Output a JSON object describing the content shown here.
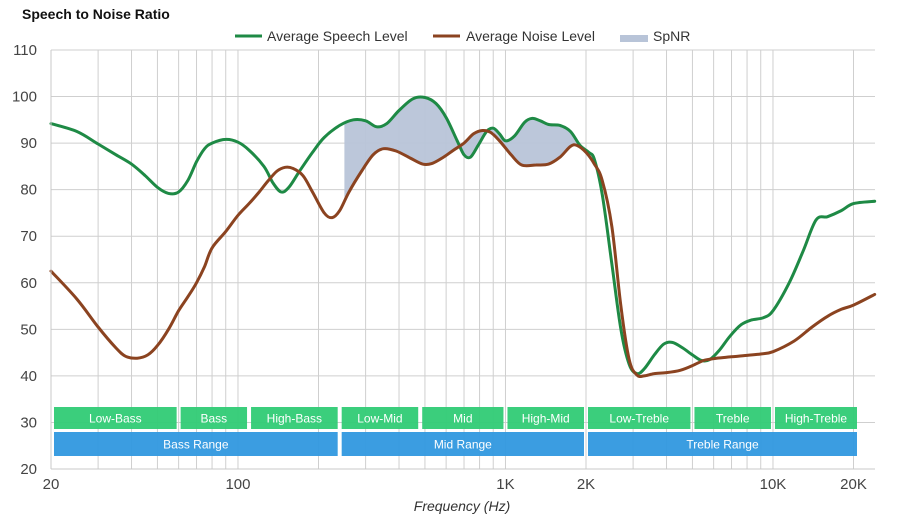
{
  "chart_data": {
    "type": "line",
    "title": "Speech to Noise Ratio",
    "xlabel": "Frequency (Hz)",
    "ylabel": "",
    "xscale": "log",
    "xlim": [
      20,
      24000
    ],
    "ylim": [
      20,
      110
    ],
    "grid": true,
    "legend_position": "top-center",
    "yticks": [
      20,
      30,
      40,
      50,
      60,
      70,
      80,
      90,
      100,
      110
    ],
    "xticks": [
      {
        "value": 20,
        "label": "20"
      },
      {
        "value": 100,
        "label": "100"
      },
      {
        "value": 1000,
        "label": "1K"
      },
      {
        "value": 2000,
        "label": "2K"
      },
      {
        "value": 10000,
        "label": "10K"
      },
      {
        "value": 20000,
        "label": "20K"
      }
    ],
    "minor_grid_x": [
      30,
      40,
      50,
      60,
      70,
      80,
      90,
      200,
      300,
      400,
      500,
      600,
      700,
      800,
      900,
      3000,
      4000,
      5000,
      6000,
      7000,
      8000,
      9000
    ],
    "legend": [
      {
        "name": "Average Speech Level",
        "color": "#1e8a45",
        "kind": "line"
      },
      {
        "name": "Average Noise Level",
        "color": "#8b4320",
        "kind": "line"
      },
      {
        "name": "SpNR",
        "color": "#b8c4d8",
        "kind": "area"
      }
    ],
    "series": [
      {
        "name": "Average Speech Level",
        "color": "#1e8a45",
        "points": [
          [
            20,
            94.2
          ],
          [
            25,
            92.5
          ],
          [
            30,
            89.8
          ],
          [
            35,
            87.5
          ],
          [
            40,
            85.5
          ],
          [
            45,
            83
          ],
          [
            50,
            80.5
          ],
          [
            55,
            79.2
          ],
          [
            60,
            79.5
          ],
          [
            65,
            82
          ],
          [
            70,
            86
          ],
          [
            75,
            88.8
          ],
          [
            80,
            90
          ],
          [
            90,
            90.8
          ],
          [
            100,
            90.2
          ],
          [
            110,
            88.5
          ],
          [
            125,
            85
          ],
          [
            135,
            81.5
          ],
          [
            145,
            79.5
          ],
          [
            155,
            80.5
          ],
          [
            170,
            84
          ],
          [
            190,
            88
          ],
          [
            210,
            91.2
          ],
          [
            240,
            93.8
          ],
          [
            270,
            95
          ],
          [
            300,
            94.8
          ],
          [
            330,
            93.5
          ],
          [
            360,
            94.2
          ],
          [
            400,
            97
          ],
          [
            450,
            99.5
          ],
          [
            500,
            99.8
          ],
          [
            550,
            98.5
          ],
          [
            600,
            95.5
          ],
          [
            660,
            90.5
          ],
          [
            700,
            87.5
          ],
          [
            740,
            87
          ],
          [
            790,
            89.5
          ],
          [
            850,
            92.5
          ],
          [
            900,
            93.2
          ],
          [
            950,
            92
          ],
          [
            1000,
            90.5
          ],
          [
            1080,
            91.5
          ],
          [
            1180,
            94.5
          ],
          [
            1260,
            95.3
          ],
          [
            1350,
            94.8
          ],
          [
            1450,
            94
          ],
          [
            1600,
            93.8
          ],
          [
            1750,
            92.5
          ],
          [
            1900,
            89.5
          ],
          [
            2050,
            88
          ],
          [
            2150,
            86.5
          ],
          [
            2300,
            79
          ],
          [
            2500,
            64
          ],
          [
            2700,
            50
          ],
          [
            2900,
            42.5
          ],
          [
            3100,
            40.5
          ],
          [
            3300,
            41.5
          ],
          [
            3600,
            44.5
          ],
          [
            3900,
            46.8
          ],
          [
            4200,
            47.2
          ],
          [
            4600,
            46
          ],
          [
            5000,
            44.5
          ],
          [
            5400,
            43.3
          ],
          [
            5800,
            43.5
          ],
          [
            6300,
            45.5
          ],
          [
            6900,
            48.5
          ],
          [
            7600,
            51
          ],
          [
            8300,
            52
          ],
          [
            9200,
            52.5
          ],
          [
            10000,
            54
          ],
          [
            11500,
            60
          ],
          [
            13000,
            67
          ],
          [
            14500,
            73.5
          ],
          [
            16000,
            74.2
          ],
          [
            18000,
            75.5
          ],
          [
            20000,
            77
          ],
          [
            24000,
            77.5
          ]
        ]
      },
      {
        "name": "Average Noise Level",
        "color": "#8b4320",
        "points": [
          [
            20,
            62.5
          ],
          [
            25,
            56.5
          ],
          [
            30,
            50.5
          ],
          [
            35,
            46
          ],
          [
            38,
            44.2
          ],
          [
            42,
            43.8
          ],
          [
            46,
            44.5
          ],
          [
            50,
            46.5
          ],
          [
            55,
            50
          ],
          [
            60,
            54
          ],
          [
            65,
            57
          ],
          [
            70,
            60
          ],
          [
            75,
            63.5
          ],
          [
            80,
            67.5
          ],
          [
            90,
            71
          ],
          [
            100,
            74.5
          ],
          [
            110,
            77
          ],
          [
            120,
            79.5
          ],
          [
            130,
            82
          ],
          [
            140,
            84
          ],
          [
            150,
            84.8
          ],
          [
            160,
            84.6
          ],
          [
            175,
            83
          ],
          [
            190,
            79.5
          ],
          [
            210,
            75
          ],
          [
            225,
            74
          ],
          [
            240,
            75.5
          ],
          [
            260,
            79.5
          ],
          [
            290,
            84
          ],
          [
            320,
            87.5
          ],
          [
            350,
            88.8
          ],
          [
            390,
            88.3
          ],
          [
            440,
            86.8
          ],
          [
            490,
            85.5
          ],
          [
            530,
            85.6
          ],
          [
            580,
            86.8
          ],
          [
            640,
            88.5
          ],
          [
            700,
            90
          ],
          [
            760,
            92
          ],
          [
            820,
            92.7
          ],
          [
            880,
            92.3
          ],
          [
            950,
            90.5
          ],
          [
            1050,
            87.5
          ],
          [
            1150,
            85.3
          ],
          [
            1300,
            85.3
          ],
          [
            1450,
            85.5
          ],
          [
            1600,
            87
          ],
          [
            1750,
            89.3
          ],
          [
            1850,
            89.5
          ],
          [
            2000,
            88
          ],
          [
            2150,
            85.5
          ],
          [
            2300,
            82
          ],
          [
            2500,
            72
          ],
          [
            2700,
            55
          ],
          [
            2900,
            43.5
          ],
          [
            3100,
            40.2
          ],
          [
            3300,
            40
          ],
          [
            3600,
            40.5
          ],
          [
            4000,
            40.7
          ],
          [
            4500,
            41.2
          ],
          [
            5000,
            42.2
          ],
          [
            5500,
            43.3
          ],
          [
            6000,
            43.7
          ],
          [
            7000,
            44.1
          ],
          [
            8000,
            44.4
          ],
          [
            9000,
            44.7
          ],
          [
            10000,
            45.2
          ],
          [
            12000,
            47.5
          ],
          [
            14000,
            50.5
          ],
          [
            16000,
            52.8
          ],
          [
            18000,
            54.3
          ],
          [
            20000,
            55.2
          ],
          [
            24000,
            57.5
          ]
        ]
      }
    ],
    "spnr_range": [
      250,
      2300
    ],
    "bands": {
      "sub": [
        {
          "label": "Low-Bass",
          "from": 20,
          "to": 60
        },
        {
          "label": "Bass",
          "from": 60,
          "to": 110
        },
        {
          "label": "High-Bass",
          "from": 110,
          "to": 240
        },
        {
          "label": "Low-Mid",
          "from": 240,
          "to": 480
        },
        {
          "label": "Mid",
          "from": 480,
          "to": 1000
        },
        {
          "label": "High-Mid",
          "from": 1000,
          "to": 2000
        },
        {
          "label": "Low-Treble",
          "from": 2000,
          "to": 5000
        },
        {
          "label": "Treble",
          "from": 5000,
          "to": 10000
        },
        {
          "label": "High-Treble",
          "from": 10000,
          "to": 20000
        }
      ],
      "ranges": [
        {
          "label": "Bass Range",
          "from": 20,
          "to": 240
        },
        {
          "label": "Mid Range",
          "from": 240,
          "to": 2000
        },
        {
          "label": "Treble Range",
          "from": 2000,
          "to": 20000
        }
      ],
      "sub_color": "#33cc77",
      "range_color": "#3399e0"
    }
  }
}
